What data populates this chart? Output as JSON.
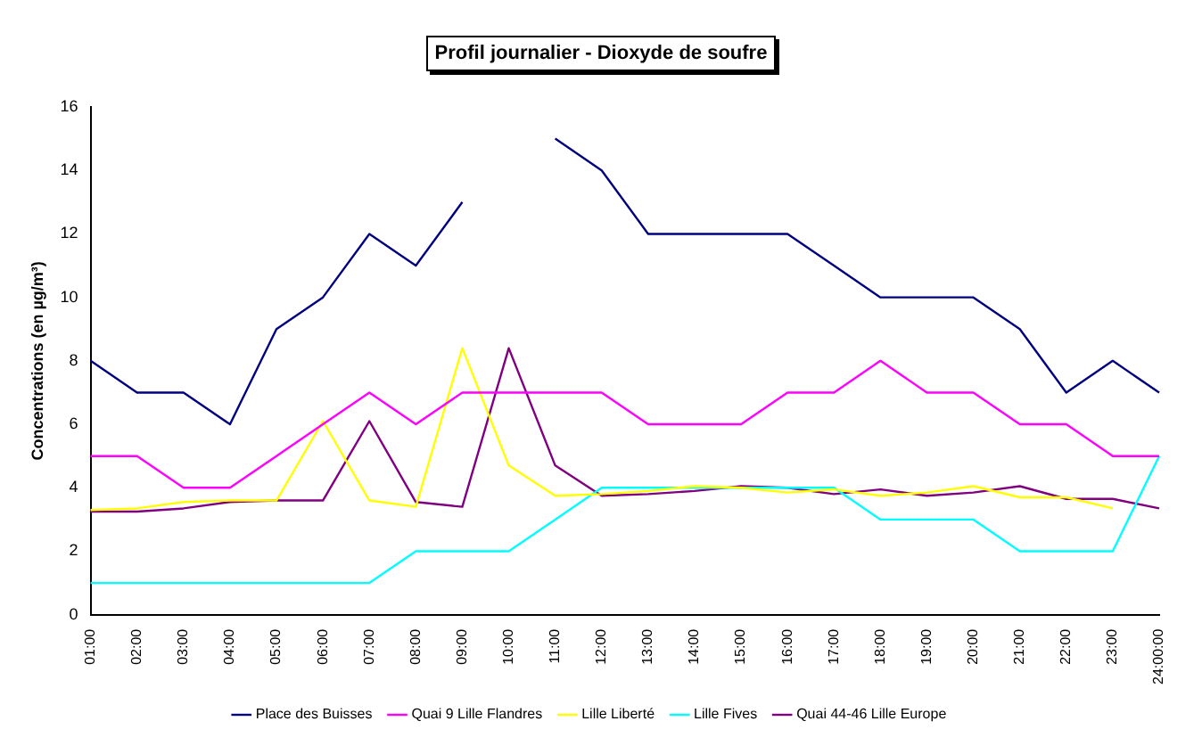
{
  "chart_data": {
    "type": "line",
    "title": "Profil journalier - Dioxyde de soufre",
    "ylabel": "Concentrations (en µg/m³)",
    "categories": [
      "01:00",
      "02:00",
      "03:00",
      "04:00",
      "05:00",
      "06:00",
      "07:00",
      "08:00",
      "09:00",
      "10:00",
      "11:00",
      "12:00",
      "13:00",
      "14:00",
      "15:00",
      "16:00",
      "17:00",
      "18:00",
      "19:00",
      "20:00",
      "21:00",
      "22:00",
      "23:00",
      "24:00:00"
    ],
    "series": [
      {
        "name": "Place des Buisses",
        "color": "#000080",
        "values": [
          8,
          7,
          7,
          6,
          9,
          10,
          12,
          11,
          13,
          null,
          15,
          14,
          12,
          12,
          12,
          12,
          11,
          10,
          10,
          10,
          9,
          7,
          8,
          7
        ]
      },
      {
        "name": "Quai 9 Lille Flandres",
        "color": "#ff00ff",
        "values": [
          5,
          5,
          4,
          4,
          5,
          6,
          7,
          6,
          7,
          7,
          7,
          7,
          6,
          6,
          6,
          7,
          7,
          8,
          7,
          7,
          6,
          6,
          5,
          5
        ]
      },
      {
        "name": "Lille Liberté",
        "color": "#ffff00",
        "values": [
          3.3,
          3.35,
          3.55,
          3.6,
          3.6,
          6.1,
          3.6,
          3.4,
          8.4,
          4.7,
          3.75,
          3.8,
          3.9,
          4.05,
          4.0,
          3.85,
          3.95,
          3.75,
          3.85,
          4.05,
          3.7,
          3.7,
          3.35,
          null
        ]
      },
      {
        "name": "Lille Fives",
        "color": "#00ffff",
        "values": [
          1,
          1,
          1,
          1,
          1,
          1,
          1,
          2,
          2,
          2,
          3,
          4,
          4,
          4,
          4,
          4,
          4,
          3,
          3,
          3,
          2,
          2,
          2,
          5
        ]
      },
      {
        "name": "Quai 44-46 Lille Europe",
        "color": "#800080",
        "values": [
          3.25,
          3.25,
          3.35,
          3.55,
          3.6,
          3.6,
          6.1,
          3.55,
          3.4,
          8.4,
          4.7,
          3.75,
          3.8,
          3.9,
          4.05,
          4.0,
          3.8,
          3.95,
          3.75,
          3.85,
          4.05,
          3.65,
          3.65,
          3.35
        ]
      }
    ],
    "ylim": [
      0,
      16
    ],
    "yticks": [
      0,
      2,
      4,
      6,
      8,
      10,
      12,
      14,
      16
    ],
    "grid": false,
    "legend": "bottom",
    "marker": "none",
    "line_style": "solid"
  }
}
